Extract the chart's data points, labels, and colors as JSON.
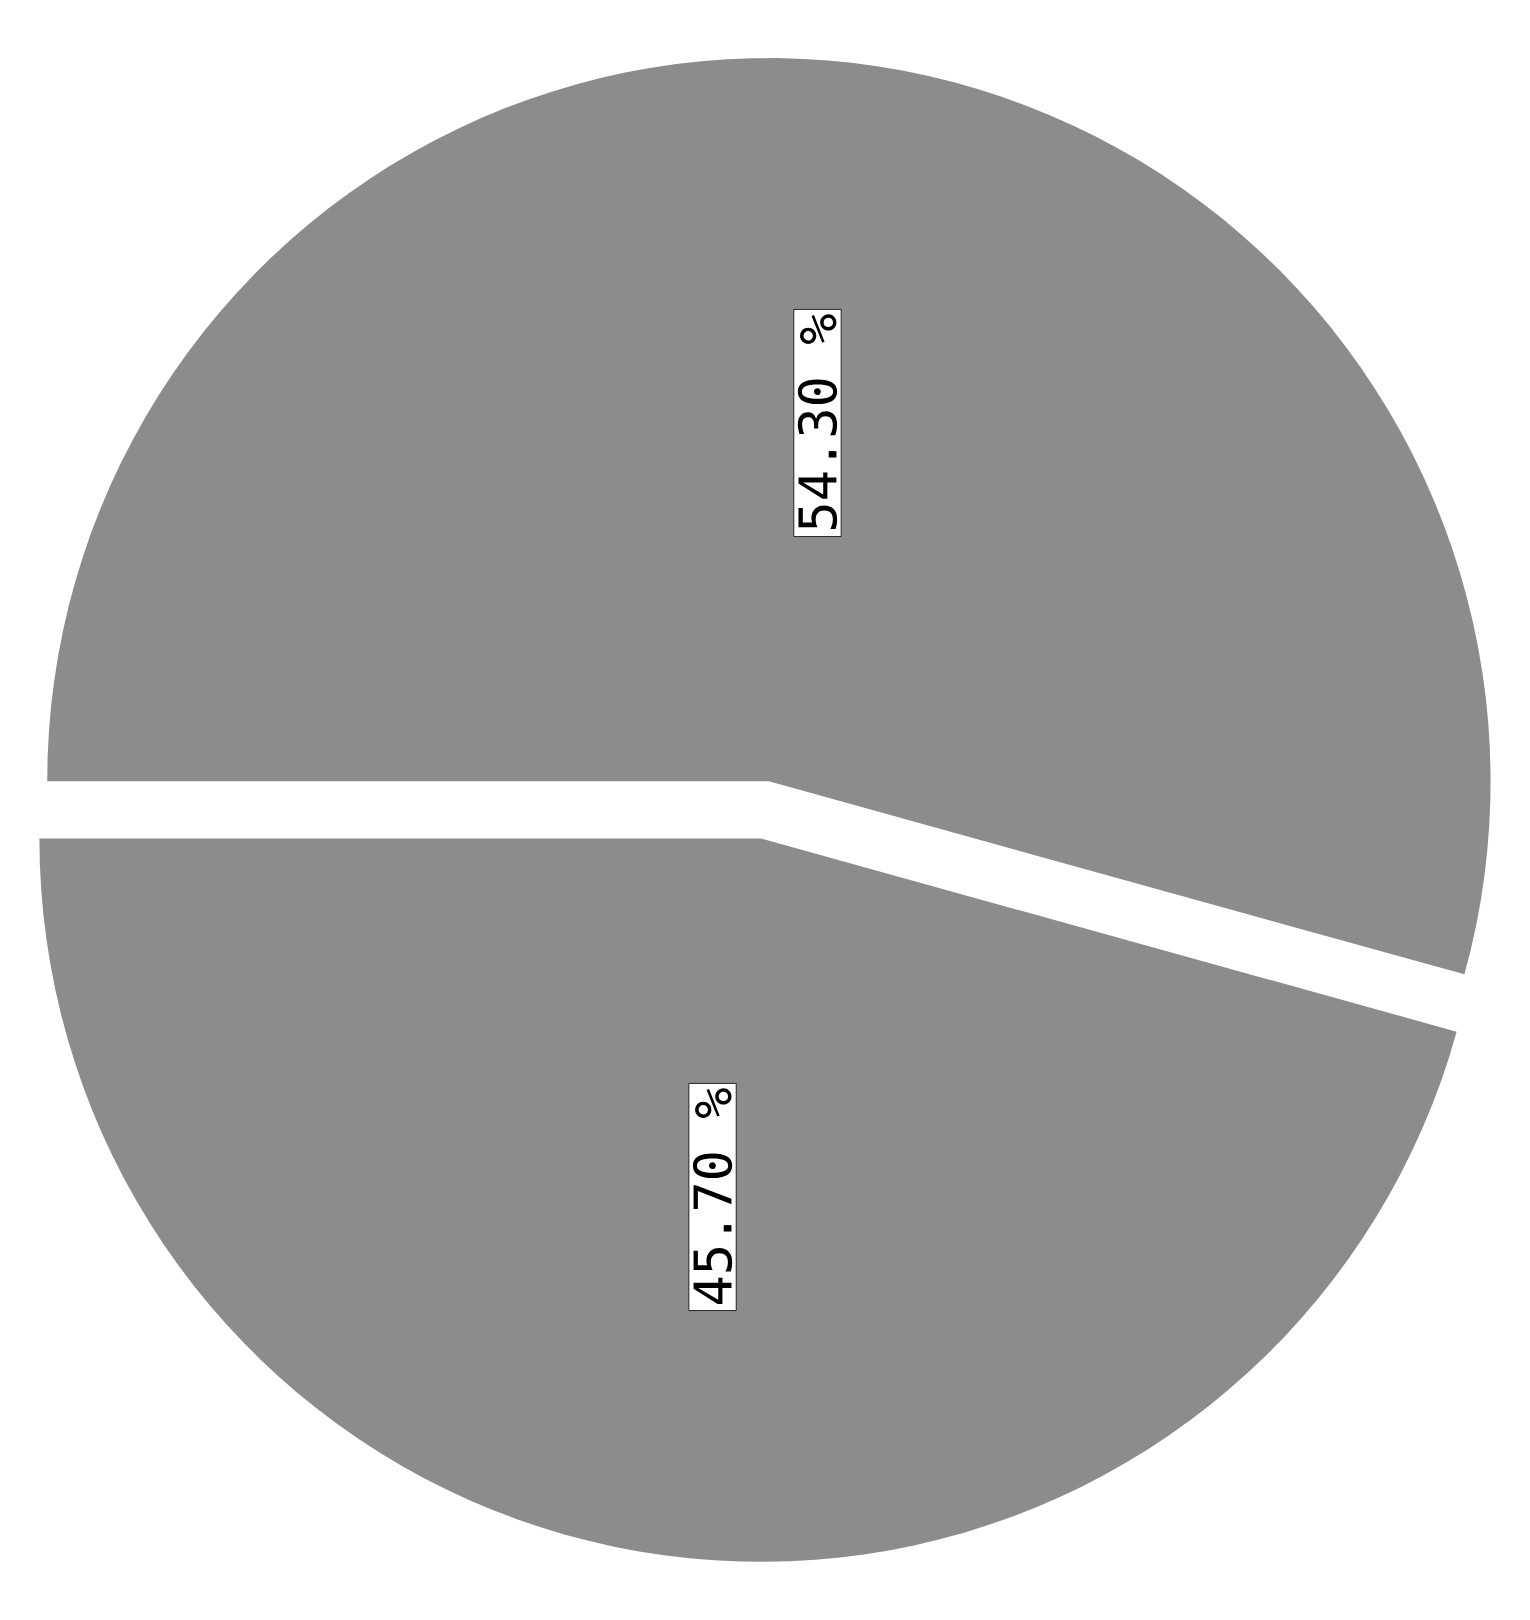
{
  "chart_data": {
    "type": "pie",
    "categories": [
      null,
      null
    ],
    "values": [
      54.3,
      45.7
    ],
    "colors": [
      "#8c8c8c",
      "#8c8c8c"
    ],
    "value_labels": [
      "54.30 %",
      "45.70 %"
    ]
  }
}
